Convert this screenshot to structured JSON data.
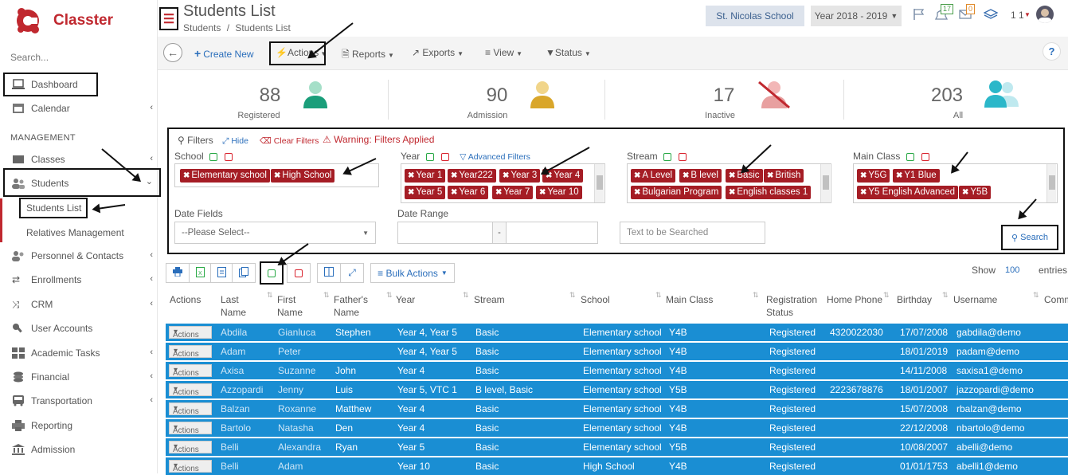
{
  "app": {
    "name": "Classter",
    "search_placeholder": "Search..."
  },
  "sidebar": {
    "dashboard": "Dashboard",
    "calendar": "Calendar",
    "section": "MANAGEMENT",
    "classes": "Classes",
    "students": "Students",
    "students_list": "Students List",
    "relatives": "Relatives Management",
    "personnel": "Personnel & Contacts",
    "enrollments": "Enrollments",
    "crm": "CRM",
    "user_accounts": "User Accounts",
    "academic": "Academic Tasks",
    "financial": "Financial",
    "transportation": "Transportation",
    "reporting": "Reporting",
    "admission": "Admission"
  },
  "header": {
    "title": "Students List",
    "breadcrumb_root": "Students",
    "breadcrumb_sep": "/",
    "breadcrumb_current": "Students List",
    "school": "St. Nicolas School",
    "year": "Year 2018 - 2019",
    "badge_notifications": "17",
    "badge_mail": "0",
    "user_count": "1 1"
  },
  "toolbar": {
    "create": "Create New",
    "actions": "Actions",
    "reports": "Reports",
    "exports": "Exports",
    "view": "View",
    "status": "Status",
    "help": "?"
  },
  "stats": [
    {
      "value": "88",
      "label": "Registered"
    },
    {
      "value": "90",
      "label": "Admission"
    },
    {
      "value": "17",
      "label": "Inactive"
    },
    {
      "value": "203",
      "label": "All"
    }
  ],
  "filters": {
    "title": "Filters",
    "hide": "Hide",
    "clear": "Clear Filters",
    "warning": "Warning: Filters Applied",
    "advanced": "Advanced Filters",
    "school_label": "School",
    "year_label": "Year",
    "stream_label": "Stream",
    "class_label": "Main Class",
    "school_tags": [
      "Elementary school",
      "High School"
    ],
    "year_tags": [
      "Year 1",
      "Year222",
      "Year 3",
      "Year 4",
      "Year 5",
      "Year 6",
      "Year 7",
      "Year 10"
    ],
    "stream_tags": [
      "A Level",
      "B level",
      "Basic",
      "British",
      "Bulgarian Program",
      "English classes 1"
    ],
    "class_tags": [
      "Y5G",
      "Y1 Blue",
      "Y5 English Advanced",
      "Y5B"
    ],
    "date_fields_label": "Date Fields",
    "date_fields_value": "--Please Select--",
    "date_range_label": "Date Range",
    "range_sep": "-",
    "text_placeholder": "Text to be Searched",
    "search": "Search"
  },
  "table_controls": {
    "bulk": "Bulk Actions",
    "show": "Show",
    "entries_value": "100",
    "entries": "entries"
  },
  "table": {
    "headers": [
      "Actions",
      "Last Name",
      "First Name",
      "Father's Name",
      "Year",
      "Stream",
      "School",
      "Main Class",
      "Registration Status",
      "Home Phone",
      "Birthday",
      "Username",
      "Comm"
    ],
    "action_label": "Actions",
    "rows": [
      [
        "Abdila",
        "Gianluca",
        "Stephen",
        "Year 4, Year 5",
        "Basic",
        "Elementary school",
        "Y4B",
        "Registered",
        "4320022030",
        "17/07/2008",
        "gabdila@demo"
      ],
      [
        "Adam",
        "Peter",
        "",
        "Year 4, Year 5",
        "Basic",
        "Elementary school",
        "Y4B",
        "Registered",
        "",
        "18/01/2019",
        "padam@demo"
      ],
      [
        "Axisa",
        "Suzanne",
        "John",
        "Year 4",
        "Basic",
        "Elementary school",
        "Y4B",
        "Registered",
        "",
        "14/11/2008",
        "saxisa1@demo"
      ],
      [
        "Azzopardi",
        "Jenny",
        "Luis",
        "Year 5, VTC 1",
        "B level, Basic",
        "Elementary school",
        "Y5B",
        "Registered",
        "2223678876",
        "18/01/2007",
        "jazzopardi@demo"
      ],
      [
        "Balzan",
        "Roxanne",
        "Matthew",
        "Year 4",
        "Basic",
        "Elementary school",
        "Y4B",
        "Registered",
        "",
        "15/07/2008",
        "rbalzan@demo"
      ],
      [
        "Bartolo",
        "Natasha",
        "Den",
        "Year 4",
        "Basic",
        "Elementary school",
        "Y4B",
        "Registered",
        "",
        "22/12/2008",
        "nbartolo@demo"
      ],
      [
        "Belli",
        "Alexandra",
        "Ryan",
        "Year 5",
        "Basic",
        "Elementary school",
        "Y5B",
        "Registered",
        "",
        "10/08/2007",
        "abelli@demo"
      ],
      [
        "Belli",
        "Adam",
        "",
        "Year 10",
        "Basic",
        "High School",
        "Y4B",
        "Registered",
        "",
        "01/01/1753",
        "abelli1@demo"
      ]
    ]
  },
  "colors": {
    "brand": "#c0282f",
    "row_bg": "#1a8ed3",
    "tag_bg": "#a51d25",
    "accent": "#2a6ebb"
  }
}
